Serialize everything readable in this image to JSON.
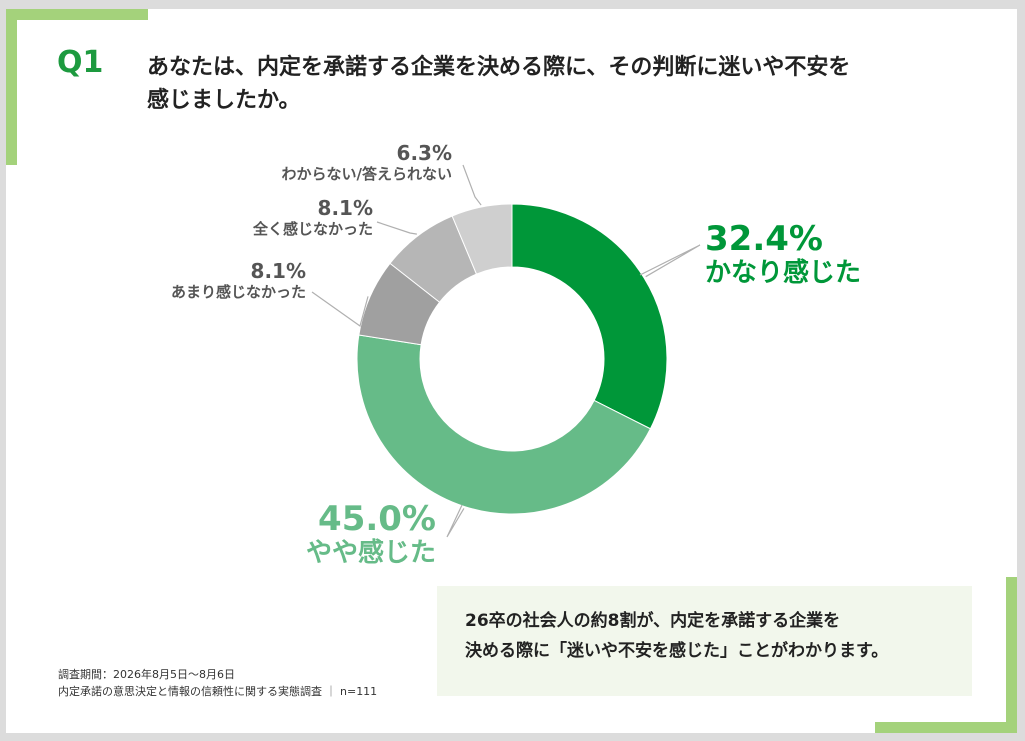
{
  "question": {
    "number": "Q1",
    "line1": "あなたは、内定を承諾する企業を決める際に、その判断に迷いや不安を",
    "line2": "感じましたか。"
  },
  "chart_data": {
    "type": "pie",
    "variant": "donut",
    "slices": [
      {
        "label": "かなり感じた",
        "value": 32.4,
        "value_label": "32.4%",
        "color": "#009739"
      },
      {
        "label": "やや感じた",
        "value": 45.0,
        "value_label": "45.0%",
        "color": "#66bb88"
      },
      {
        "label": "あまり感じなかった",
        "value": 8.1,
        "value_label": "8.1%",
        "color": "#a0a0a0"
      },
      {
        "label": "全く感じなかった",
        "value": 8.1,
        "value_label": "8.1%",
        "color": "#b6b6b6"
      },
      {
        "label": "わからない/答えられない",
        "value": 6.3,
        "value_label": "6.3%",
        "color": "#cfcfcf"
      }
    ],
    "start": "12 o'clock",
    "direction": "clockwise"
  },
  "summary": {
    "line1": "26卒の社会人の約8割が、内定を承諾する企業を",
    "line2": "決める際に「迷いや不安を感じた」ことがわかります。"
  },
  "footnote": {
    "period": "調査期間：2026年8月5日～8月6日",
    "survey": "内定承諾の意思決定と情報の信頼性に関する実態調査",
    "separator": "｜",
    "n": "n=111"
  }
}
